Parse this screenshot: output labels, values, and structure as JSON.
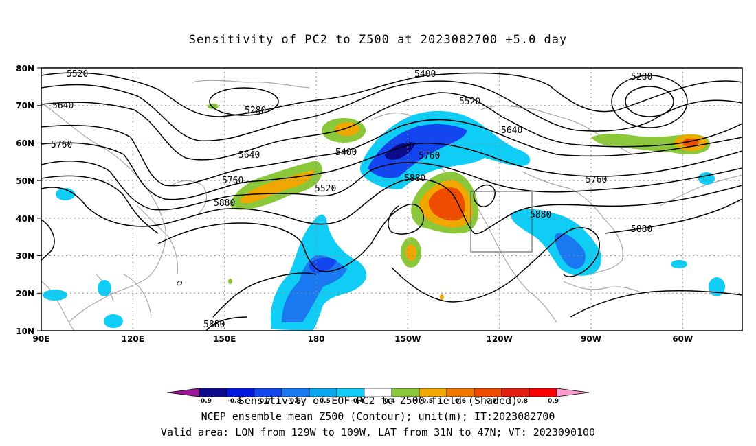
{
  "title": "Sensitivity of PC2 to Z500 at 2023082700 +5.0 day",
  "map": {
    "lat_labels": [
      "80N",
      "70N",
      "60N",
      "50N",
      "40N",
      "30N",
      "20N",
      "10N"
    ],
    "lon_labels": [
      "90E",
      "120E",
      "150E",
      "180",
      "150W",
      "120W",
      "90W",
      "60W"
    ],
    "grid": "dotted",
    "valid_box": {
      "lon": [
        "129W",
        "109W"
      ],
      "lat": [
        "31N",
        "47N"
      ]
    }
  },
  "contour_labels": [
    "5520",
    "5400",
    "5280",
    "5640",
    "5280",
    "5520",
    "5760",
    "5640",
    "5400",
    "5640",
    "5760",
    "5520",
    "5760",
    "5880",
    "5880",
    "5760",
    "5880",
    "5880",
    "5880"
  ],
  "colorbar": {
    "labels": [
      "-0.9",
      "-0.8",
      "-0.7",
      "-0.6",
      "-0.5",
      "-0.4",
      "0.4",
      "0.5",
      "0.6",
      "0.7",
      "0.8",
      "0.9"
    ],
    "colors": [
      "#a0169a",
      "#0b0b8c",
      "#0019e0",
      "#1346ee",
      "#1a78f0",
      "#0aa8f0",
      "#10cdf5",
      "#ffffff",
      "#8ac83a",
      "#f0a800",
      "#f07800",
      "#f04c00",
      "#e51e10",
      "#ff0000",
      "#ff9ad0"
    ]
  },
  "caption": {
    "line1_overlap": "Sensitivity of EOF PC2 to Z500 field (Shaded)",
    "line2": "NCEP ensemble mean Z500 (Contour); unit(m); IT:2023082700",
    "line3": "Valid area: LON from 129W to 109W, LAT from 31N to 47N; VT: 2023090100"
  }
}
